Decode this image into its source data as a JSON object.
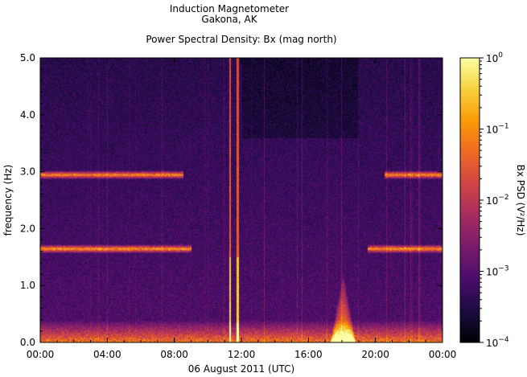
{
  "title_lines": [
    "Induction Magnetometer",
    "Gakona, AK"
  ],
  "subtitle": "Power Spectral Density: Bx (mag north)",
  "xlabel": "06 August 2011 (UTC)",
  "ylabel": "frequency (Hz)",
  "colorbar_label": "Bx PSD (V²/Hz)",
  "chart_data": {
    "type": "heatmap",
    "title": "Power Spectral Density: Bx (mag north)",
    "xlabel": "06 August 2011 (UTC)",
    "ylabel": "frequency (Hz)",
    "x_range_hours": [
      0,
      24
    ],
    "x_ticks": [
      {
        "label": "00:00",
        "hour": 0
      },
      {
        "label": "04:00",
        "hour": 4
      },
      {
        "label": "08:00",
        "hour": 8
      },
      {
        "label": "12:00",
        "hour": 12
      },
      {
        "label": "16:00",
        "hour": 16
      },
      {
        "label": "20:00",
        "hour": 20
      },
      {
        "label": "00:00",
        "hour": 24
      }
    ],
    "ylim": [
      0,
      5
    ],
    "y_ticks": [
      {
        "label": "0.0",
        "value": 0
      },
      {
        "label": "1.0",
        "value": 1
      },
      {
        "label": "2.0",
        "value": 2
      },
      {
        "label": "3.0",
        "value": 3
      },
      {
        "label": "4.0",
        "value": 4
      },
      {
        "label": "5.0",
        "value": 5
      }
    ],
    "colorbar": {
      "label": "Bx PSD (V²/Hz)",
      "scale": "log",
      "range": [
        0.0001,
        1
      ],
      "ticks": [
        {
          "base": "10",
          "exp": "0",
          "value": 1
        },
        {
          "base": "10",
          "exp": "−1",
          "value": 0.1
        },
        {
          "base": "10",
          "exp": "−2",
          "value": 0.01
        },
        {
          "base": "10",
          "exp": "−3",
          "value": 0.001
        },
        {
          "base": "10",
          "exp": "−4",
          "value": 0.0001
        }
      ],
      "colormap": [
        "#000004",
        "#1b0c41",
        "#4a0c6b",
        "#781c6d",
        "#a52c60",
        "#cf4446",
        "#ed6925",
        "#fb9b06",
        "#f7d13d",
        "#fcffa4"
      ]
    },
    "features": [
      {
        "name": "Pc1 band",
        "freq_hz": 1.65,
        "active_hours": [
          [
            0,
            9
          ],
          [
            19.5,
            24
          ]
        ]
      },
      {
        "name": "Pc1 harmonic",
        "freq_hz": 2.95,
        "active_hours": [
          [
            0,
            8.5
          ],
          [
            20.5,
            24
          ]
        ]
      },
      {
        "name": "low-frequency enhancement",
        "freq_hz": [
          0,
          0.4
        ],
        "active_hours": [
          [
            0,
            24
          ]
        ]
      },
      {
        "name": "broadband spikes",
        "hours": [
          11.3,
          11.75
        ]
      },
      {
        "name": "burst near 18:00",
        "hours": [
          17.3,
          18.8
        ],
        "freq_hz": [
          0,
          1.2
        ]
      }
    ]
  }
}
